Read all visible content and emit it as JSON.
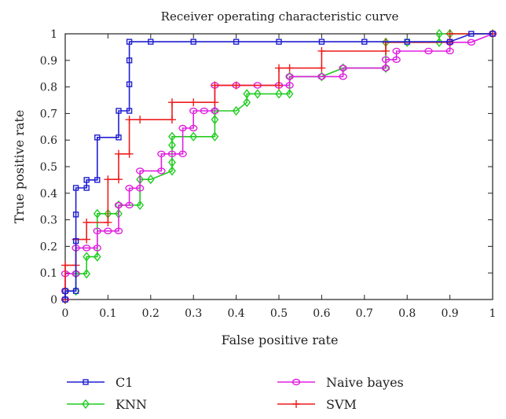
{
  "chart_data": {
    "type": "line",
    "title": "Receiver operating characteristic curve",
    "xlabel": "False positive rate",
    "ylabel": "True positive rate",
    "xlim": [
      0,
      1
    ],
    "ylim": [
      0,
      1
    ],
    "xticks": [
      "0",
      "0.1",
      "0.2",
      "0.3",
      "0.4",
      "0.5",
      "0.6",
      "0.7",
      "0.8",
      "0.9",
      "1"
    ],
    "yticks": [
      "0",
      "0.1",
      "0.2",
      "0.3",
      "0.4",
      "0.5",
      "0.6",
      "0.7",
      "0.8",
      "0.9",
      "1"
    ],
    "grid": false,
    "legend_position": "bottom",
    "series": [
      {
        "name": "C1",
        "color": "#1f1fd0",
        "marker": "square",
        "x": [
          0,
          0,
          0.025,
          0.025,
          0.025,
          0.025,
          0.05,
          0.05,
          0.075,
          0.075,
          0.125,
          0.125,
          0.15,
          0.15,
          0.15,
          0.15,
          0.2,
          0.3,
          0.4,
          0.5,
          0.6,
          0.7,
          0.8,
          0.9,
          0.95,
          1
        ],
        "y": [
          0,
          0.032,
          0.032,
          0.22,
          0.32,
          0.42,
          0.42,
          0.45,
          0.45,
          0.61,
          0.61,
          0.71,
          0.71,
          0.81,
          0.9,
          0.97,
          0.97,
          0.97,
          0.97,
          0.97,
          0.97,
          0.97,
          0.97,
          0.97,
          1,
          1
        ]
      },
      {
        "name": "KNN",
        "color": "#22cc22",
        "marker": "diamond",
        "x": [
          0,
          0,
          0.025,
          0.025,
          0.05,
          0.05,
          0.075,
          0.075,
          0.1,
          0.125,
          0.125,
          0.175,
          0.175,
          0.2,
          0.25,
          0.25,
          0.25,
          0.25,
          0.3,
          0.35,
          0.35,
          0.35,
          0.4,
          0.425,
          0.425,
          0.45,
          0.5,
          0.525,
          0.525,
          0.6,
          0.65,
          0.75,
          0.75,
          0.8,
          0.875,
          0.875,
          0.9,
          1
        ],
        "y": [
          0,
          0.032,
          0.032,
          0.097,
          0.097,
          0.161,
          0.161,
          0.323,
          0.323,
          0.323,
          0.355,
          0.355,
          0.452,
          0.452,
          0.484,
          0.516,
          0.581,
          0.613,
          0.613,
          0.613,
          0.677,
          0.71,
          0.71,
          0.742,
          0.774,
          0.774,
          0.774,
          0.774,
          0.839,
          0.839,
          0.871,
          0.871,
          0.968,
          0.968,
          0.968,
          1,
          1,
          1
        ]
      },
      {
        "name": "Naive bayes",
        "color": "#e020e0",
        "marker": "circle",
        "x": [
          0,
          0,
          0,
          0.025,
          0.025,
          0.05,
          0.075,
          0.075,
          0.1,
          0.125,
          0.125,
          0.15,
          0.15,
          0.175,
          0.175,
          0.225,
          0.225,
          0.25,
          0.275,
          0.275,
          0.3,
          0.3,
          0.325,
          0.35,
          0.35,
          0.4,
          0.45,
          0.5,
          0.525,
          0.525,
          0.6,
          0.65,
          0.65,
          0.75,
          0.75,
          0.775,
          0.775,
          0.85,
          0.9,
          0.9,
          0.95,
          1
        ],
        "y": [
          0,
          0.032,
          0.097,
          0.097,
          0.194,
          0.194,
          0.194,
          0.258,
          0.258,
          0.258,
          0.355,
          0.355,
          0.419,
          0.419,
          0.484,
          0.484,
          0.548,
          0.548,
          0.548,
          0.645,
          0.645,
          0.71,
          0.71,
          0.71,
          0.806,
          0.806,
          0.806,
          0.806,
          0.806,
          0.839,
          0.839,
          0.839,
          0.871,
          0.871,
          0.903,
          0.903,
          0.935,
          0.935,
          0.935,
          0.968,
          0.968,
          1
        ]
      },
      {
        "name": "SVM",
        "color": "#ee1c1c",
        "marker": "plus",
        "x": [
          0,
          0,
          0.025,
          0.025,
          0.05,
          0.05,
          0.1,
          0.1,
          0.125,
          0.125,
          0.15,
          0.15,
          0.175,
          0.25,
          0.25,
          0.3,
          0.35,
          0.35,
          0.4,
          0.5,
          0.5,
          0.525,
          0.6,
          0.6,
          0.75,
          0.75,
          0.9,
          0.9,
          1
        ],
        "y": [
          0,
          0.129,
          0.129,
          0.226,
          0.226,
          0.29,
          0.29,
          0.452,
          0.452,
          0.548,
          0.548,
          0.677,
          0.677,
          0.677,
          0.742,
          0.742,
          0.742,
          0.806,
          0.806,
          0.806,
          0.871,
          0.871,
          0.871,
          0.935,
          0.935,
          0.968,
          0.968,
          1,
          1
        ]
      }
    ]
  }
}
